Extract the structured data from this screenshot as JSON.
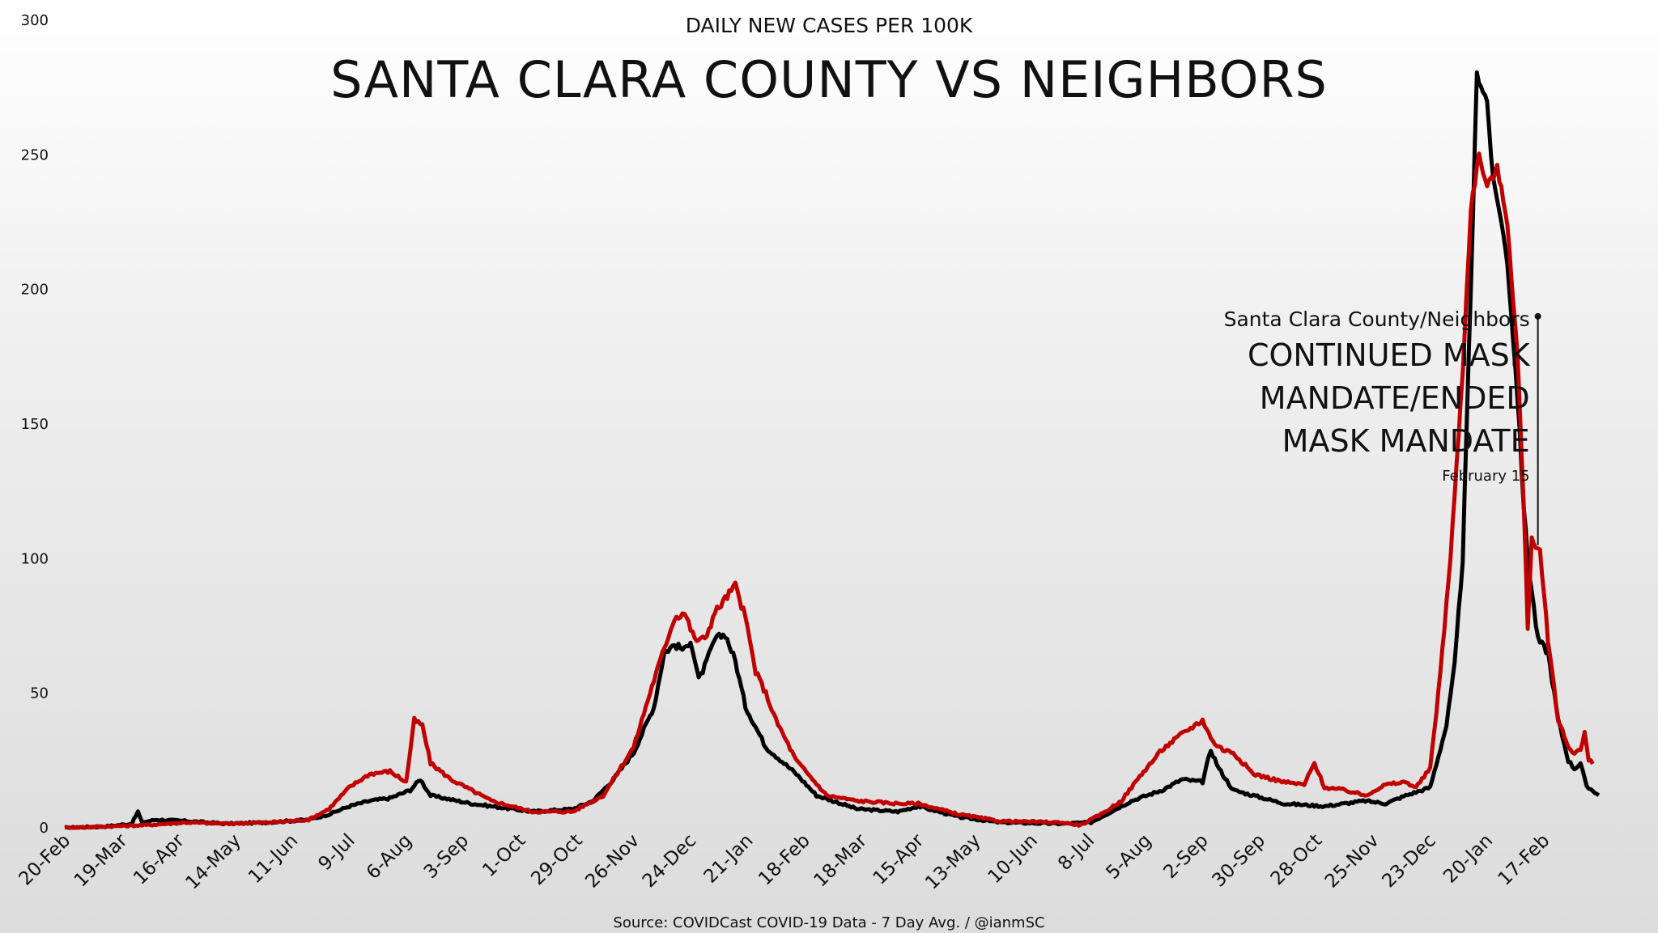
{
  "chart_data": {
    "type": "line",
    "subtitle": "DAILY NEW CASES PER 100K",
    "title": "SANTA CLARA COUNTY VS NEIGHBORS",
    "source": "Source: COVIDCast COVID-19 Data - 7 Day Avg. / @ianmSC",
    "ylim": [
      0,
      300
    ],
    "yticks": [
      "0",
      "50",
      "100",
      "150",
      "200",
      "250",
      "300"
    ],
    "x_count": 762,
    "xtick_labels": [
      "20-Feb",
      "19-Mar",
      "16-Apr",
      "14-May",
      "11-Jun",
      "9-Jul",
      "6-Aug",
      "3-Sep",
      "1-Oct",
      "29-Oct",
      "26-Nov",
      "24-Dec",
      "21-Jan",
      "18-Feb",
      "18-Mar",
      "15-Apr",
      "13-May",
      "10-Jun",
      "8-Jul",
      "5-Aug",
      "2-Sep",
      "30-Sep",
      "28-Oct",
      "25-Nov",
      "23-Dec",
      "20-Jan",
      "17-Feb"
    ],
    "xtick_index": [
      0,
      28,
      56,
      84,
      112,
      140,
      168,
      196,
      224,
      252,
      280,
      308,
      336,
      364,
      392,
      420,
      448,
      476,
      504,
      532,
      560,
      588,
      616,
      644,
      672,
      700,
      728
    ],
    "grid": false,
    "legend": "none",
    "series": [
      {
        "color": "#000000",
        "keypoints": [
          [
            0,
            0
          ],
          [
            20,
            0.5
          ],
          [
            33,
            1.5
          ],
          [
            36,
            6
          ],
          [
            38,
            2
          ],
          [
            45,
            3
          ],
          [
            60,
            2.5
          ],
          [
            80,
            1.5
          ],
          [
            100,
            2
          ],
          [
            120,
            3
          ],
          [
            130,
            5
          ],
          [
            140,
            8
          ],
          [
            150,
            10
          ],
          [
            160,
            11
          ],
          [
            170,
            14
          ],
          [
            175,
            18
          ],
          [
            180,
            12
          ],
          [
            200,
            9
          ],
          [
            230,
            6
          ],
          [
            250,
            7
          ],
          [
            260,
            10
          ],
          [
            270,
            18
          ],
          [
            280,
            28
          ],
          [
            290,
            45
          ],
          [
            295,
            65
          ],
          [
            300,
            68
          ],
          [
            305,
            66
          ],
          [
            308,
            70
          ],
          [
            312,
            55
          ],
          [
            315,
            60
          ],
          [
            320,
            70
          ],
          [
            325,
            72
          ],
          [
            330,
            62
          ],
          [
            335,
            45
          ],
          [
            345,
            30
          ],
          [
            360,
            20
          ],
          [
            370,
            12
          ],
          [
            390,
            7
          ],
          [
            410,
            6
          ],
          [
            420,
            8
          ],
          [
            440,
            4
          ],
          [
            460,
            2
          ],
          [
            490,
            1.5
          ],
          [
            505,
            2
          ],
          [
            515,
            6
          ],
          [
            525,
            10
          ],
          [
            540,
            14
          ],
          [
            550,
            18
          ],
          [
            560,
            17
          ],
          [
            564,
            29
          ],
          [
            568,
            22
          ],
          [
            575,
            14
          ],
          [
            600,
            9
          ],
          [
            620,
            8
          ],
          [
            640,
            10
          ],
          [
            650,
            9
          ],
          [
            660,
            12
          ],
          [
            672,
            15
          ],
          [
            680,
            38
          ],
          [
            684,
            60
          ],
          [
            688,
            100
          ],
          [
            692,
            200
          ],
          [
            695,
            280
          ],
          [
            700,
            270
          ],
          [
            703,
            240
          ],
          [
            706,
            230
          ],
          [
            710,
            210
          ],
          [
            715,
            160
          ],
          [
            718,
            120
          ],
          [
            720,
            100
          ],
          [
            725,
            70
          ],
          [
            730,
            65
          ],
          [
            735,
            40
          ],
          [
            740,
            25
          ],
          [
            743,
            22
          ],
          [
            746,
            24
          ],
          [
            749,
            15
          ],
          [
            752,
            14
          ],
          [
            755,
            12
          ]
        ]
      },
      {
        "color": "#c00000",
        "keypoints": [
          [
            0,
            0
          ],
          [
            40,
            1
          ],
          [
            60,
            2
          ],
          [
            80,
            1.5
          ],
          [
            100,
            2
          ],
          [
            120,
            3
          ],
          [
            130,
            7
          ],
          [
            140,
            15
          ],
          [
            150,
            20
          ],
          [
            160,
            21
          ],
          [
            168,
            17
          ],
          [
            172,
            40
          ],
          [
            176,
            38
          ],
          [
            180,
            24
          ],
          [
            190,
            18
          ],
          [
            200,
            14
          ],
          [
            210,
            10
          ],
          [
            230,
            6
          ],
          [
            250,
            6
          ],
          [
            265,
            12
          ],
          [
            280,
            30
          ],
          [
            290,
            55
          ],
          [
            300,
            78
          ],
          [
            305,
            80
          ],
          [
            310,
            70
          ],
          [
            315,
            70
          ],
          [
            320,
            80
          ],
          [
            325,
            85
          ],
          [
            330,
            90
          ],
          [
            335,
            78
          ],
          [
            340,
            58
          ],
          [
            345,
            50
          ],
          [
            350,
            40
          ],
          [
            360,
            25
          ],
          [
            375,
            12
          ],
          [
            390,
            10
          ],
          [
            410,
            9
          ],
          [
            420,
            9
          ],
          [
            440,
            5
          ],
          [
            460,
            2.5
          ],
          [
            490,
            2
          ],
          [
            500,
            1
          ],
          [
            510,
            5
          ],
          [
            520,
            10
          ],
          [
            530,
            20
          ],
          [
            540,
            29
          ],
          [
            550,
            35
          ],
          [
            560,
            40
          ],
          [
            565,
            32
          ],
          [
            570,
            29
          ],
          [
            575,
            28
          ],
          [
            585,
            20
          ],
          [
            600,
            17
          ],
          [
            610,
            16
          ],
          [
            615,
            24
          ],
          [
            620,
            15
          ],
          [
            630,
            14
          ],
          [
            640,
            12
          ],
          [
            650,
            16
          ],
          [
            660,
            17
          ],
          [
            665,
            15
          ],
          [
            672,
            22
          ],
          [
            676,
            50
          ],
          [
            682,
            100
          ],
          [
            688,
            170
          ],
          [
            692,
            230
          ],
          [
            696,
            250
          ],
          [
            700,
            238
          ],
          [
            705,
            245
          ],
          [
            710,
            225
          ],
          [
            715,
            175
          ],
          [
            718,
            120
          ],
          [
            720,
            75
          ],
          [
            722,
            108
          ],
          [
            726,
            102
          ],
          [
            730,
            70
          ],
          [
            735,
            40
          ],
          [
            740,
            30
          ],
          [
            743,
            28
          ],
          [
            746,
            29
          ],
          [
            748,
            35
          ],
          [
            750,
            25
          ],
          [
            752,
            24
          ]
        ]
      }
    ],
    "annotation": {
      "label_top": "Santa Clara County/Neighbors",
      "label_main": [
        "CONTINUED MASK",
        "MANDATE/ENDED",
        "MASK MANDATE"
      ],
      "label_date": "February 15",
      "x_index": 725,
      "y_top": 190,
      "y_bottom": 105
    }
  }
}
